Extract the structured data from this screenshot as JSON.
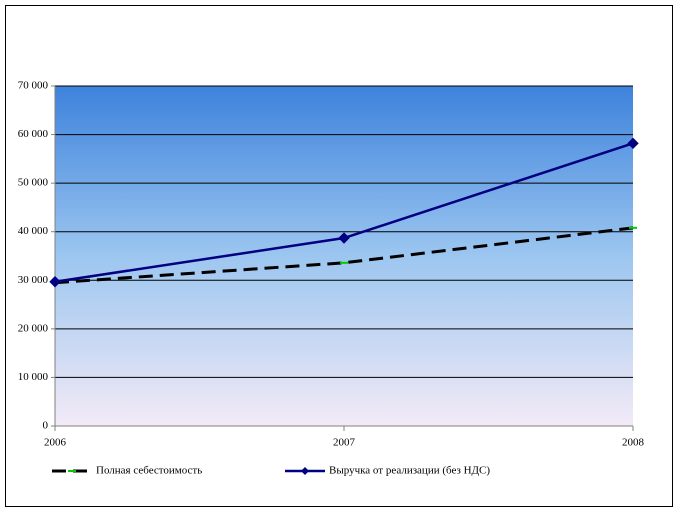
{
  "chart_data": {
    "type": "line",
    "categories": [
      "2006",
      "2007",
      "2008"
    ],
    "series": [
      {
        "name": "Полная себестоимость",
        "color": "#000000",
        "values": [
          29500,
          33600,
          40800
        ]
      },
      {
        "name": "Выручка от реализации (без НДС)",
        "color": "#000080",
        "values": [
          29700,
          38700,
          58200
        ]
      }
    ],
    "ylim": [
      0,
      70000
    ],
    "yticks": [
      0,
      {
        "value": 10000,
        "label": "10 000"
      },
      {
        "value": 20000,
        "label": "20 000"
      },
      {
        "value": 30000,
        "label": "30 000"
      },
      {
        "value": 40000,
        "label": "40 000"
      },
      {
        "value": 50000,
        "label": "50 000"
      },
      {
        "value": 60000,
        "label": "60 000"
      },
      {
        "value": 70000,
        "label": "70 000"
      }
    ],
    "grid": true
  }
}
